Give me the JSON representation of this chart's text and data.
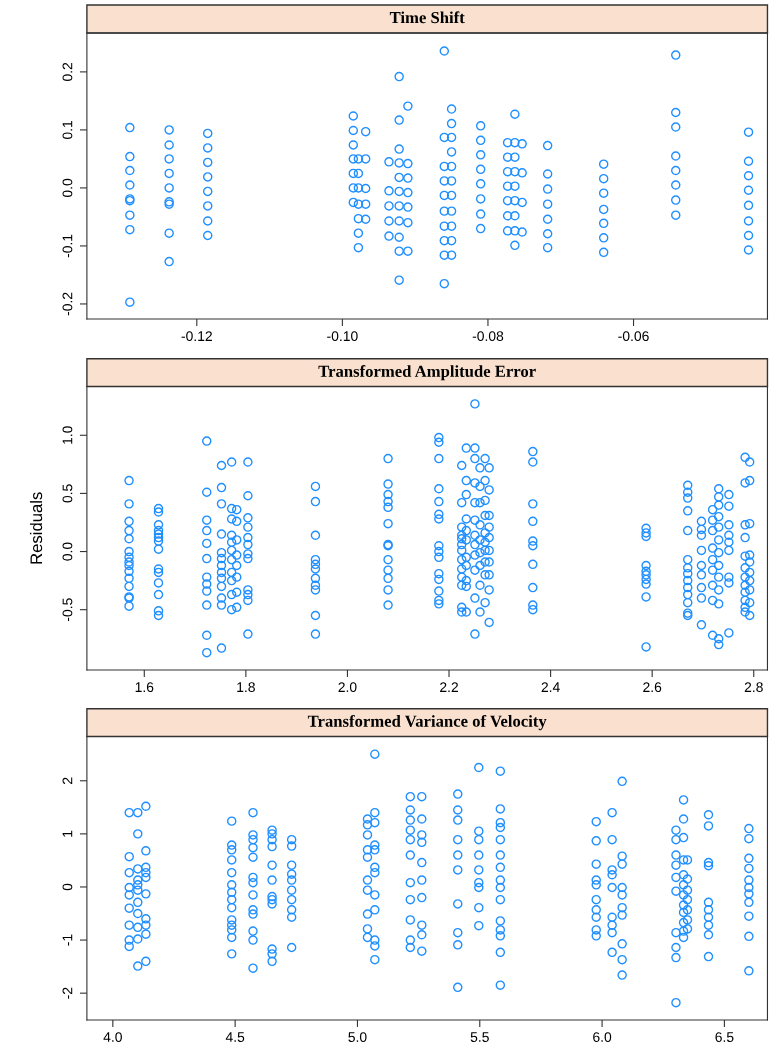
{
  "chart_data": [
    {
      "type": "scatter",
      "title": "Time Shift",
      "marker": "circle",
      "color": "#1f8fff",
      "grid": false,
      "xlim": [
        -0.1351,
        -0.0416
      ],
      "ylim": [
        -0.226,
        0.267
      ],
      "xticks": [
        {
          "value": -0.12,
          "label": "-0.12"
        },
        {
          "value": -0.1,
          "label": "-0.10"
        },
        {
          "value": -0.08,
          "label": "-0.08"
        },
        {
          "value": -0.06,
          "label": "-0.06"
        }
      ],
      "yticks": [
        {
          "value": -0.2,
          "label": "-0.2"
        },
        {
          "value": -0.1,
          "label": "-0.1"
        },
        {
          "value": 0,
          "label": "0.0"
        },
        {
          "value": 0.1,
          "label": "0.1"
        },
        {
          "value": 0.2,
          "label": "0.2"
        }
      ],
      "series": [
        {
          "x": [
            -0.1292,
            -0.1292,
            -0.1292,
            -0.1292,
            -0.1292,
            -0.1292,
            -0.1292,
            -0.1292,
            -0.1292
          ],
          "values": [
            0.104,
            0.054,
            0.03,
            0.005,
            -0.019,
            -0.022,
            -0.047,
            -0.072,
            -0.197
          ]
        },
        {
          "x": [
            -0.1238,
            -0.1238,
            -0.1238,
            -0.1238,
            -0.1238,
            -0.1238,
            -0.1238,
            -0.1238,
            -0.1238
          ],
          "values": [
            0.1,
            0.074,
            0.05,
            0.025,
            0.0,
            -0.024,
            -0.028,
            -0.078,
            -0.127
          ]
        },
        {
          "x": [
            -0.1185,
            -0.1185,
            -0.1185,
            -0.1185,
            -0.1185,
            -0.1185,
            -0.1185,
            -0.1185
          ],
          "values": [
            0.094,
            0.069,
            0.044,
            0.019,
            -0.006,
            -0.031,
            -0.057,
            -0.082
          ]
        },
        {
          "x": [
            -0.0985,
            -0.0985,
            -0.0985,
            -0.0985,
            -0.0985,
            -0.0985,
            -0.0985
          ],
          "values": [
            0.124,
            0.099,
            0.074,
            0.05,
            0.025,
            0,
            -0.025
          ]
        },
        {
          "x": [
            -0.0978,
            -0.0978,
            -0.0978,
            -0.0978,
            -0.0978,
            -0.0978,
            -0.0978
          ],
          "values": [
            0.05,
            0.025,
            0,
            -0.028,
            -0.053,
            -0.078,
            -0.103
          ]
        },
        {
          "x": [
            -0.0968,
            -0.0968,
            -0.0968,
            -0.0968,
            -0.0968
          ],
          "values": [
            0.097,
            0.05,
            -0.001,
            -0.028,
            -0.054
          ]
        },
        {
          "x": [
            -0.0936,
            -0.0936,
            -0.0936,
            -0.0936,
            -0.0936
          ],
          "values": [
            0.045,
            -0.005,
            -0.031,
            -0.057,
            -0.083
          ]
        },
        {
          "x": [
            -0.0922,
            -0.0922,
            -0.0922,
            -0.0922,
            -0.0922,
            -0.0922,
            -0.0922,
            -0.0922,
            -0.0922,
            -0.0922,
            -0.0922
          ],
          "values": [
            0.192,
            0.117,
            0.067,
            0.043,
            0.018,
            -0.006,
            -0.031,
            -0.057,
            -0.085,
            -0.109,
            -0.159
          ]
        },
        {
          "x": [
            -0.091,
            -0.091,
            -0.091,
            -0.091,
            -0.091,
            -0.091,
            -0.091
          ],
          "values": [
            0.141,
            0.042,
            0.017,
            -0.008,
            -0.033,
            -0.06,
            -0.109
          ]
        },
        {
          "x": [
            -0.086,
            -0.086,
            -0.086,
            -0.086,
            -0.086,
            -0.086,
            -0.086,
            -0.086,
            -0.086,
            -0.086
          ],
          "values": [
            0.236,
            0.087,
            0.037,
            0.012,
            -0.013,
            -0.04,
            -0.066,
            -0.091,
            -0.116,
            -0.165
          ]
        },
        {
          "x": [
            -0.085,
            -0.085,
            -0.085,
            -0.085,
            -0.085,
            -0.085,
            -0.085,
            -0.085,
            -0.085,
            -0.085,
            -0.085
          ],
          "values": [
            0.136,
            0.111,
            0.087,
            0.062,
            0.037,
            0.012,
            -0.013,
            -0.04,
            -0.066,
            -0.091,
            -0.116
          ]
        },
        {
          "x": [
            -0.081,
            -0.081,
            -0.081,
            -0.081,
            -0.081,
            -0.081,
            -0.081,
            -0.081
          ],
          "values": [
            0.107,
            0.082,
            0.057,
            0.032,
            0.007,
            -0.019,
            -0.045,
            -0.07
          ]
        },
        {
          "x": [
            -0.0773,
            -0.0773,
            -0.0773,
            -0.0773,
            -0.0773,
            -0.0773,
            -0.0773
          ],
          "values": [
            0.078,
            0.053,
            0.028,
            0.003,
            -0.022,
            -0.048,
            -0.074
          ]
        },
        {
          "x": [
            -0.0763,
            -0.0763,
            -0.0763,
            -0.0763,
            -0.0763,
            -0.0763,
            -0.0763,
            -0.0763,
            -0.0763
          ],
          "values": [
            0.127,
            0.078,
            0.053,
            0.028,
            0.003,
            -0.022,
            -0.048,
            -0.074,
            -0.099
          ]
        },
        {
          "x": [
            -0.0753,
            -0.0753,
            -0.0753,
            -0.0753
          ],
          "values": [
            0.076,
            0.026,
            -0.025,
            -0.076
          ]
        },
        {
          "x": [
            -0.0718,
            -0.0718,
            -0.0718,
            -0.0718,
            -0.0718,
            -0.0718,
            -0.0718
          ],
          "values": [
            0.073,
            0.024,
            -0.002,
            -0.028,
            -0.054,
            -0.079,
            -0.103
          ]
        },
        {
          "x": [
            -0.0641,
            -0.0641,
            -0.0641,
            -0.0641,
            -0.0641,
            -0.0641,
            -0.0641
          ],
          "values": [
            0.041,
            0.016,
            -0.009,
            -0.037,
            -0.061,
            -0.086,
            -0.111
          ]
        },
        {
          "x": [
            -0.0542,
            -0.0542,
            -0.0542,
            -0.0542,
            -0.0542,
            -0.0542,
            -0.0542,
            -0.0542
          ],
          "values": [
            0.229,
            0.13,
            0.105,
            0.055,
            0.03,
            0.005,
            -0.021,
            -0.047
          ]
        },
        {
          "x": [
            -0.0442,
            -0.0442,
            -0.0442,
            -0.0442,
            -0.0442,
            -0.0442,
            -0.0442,
            -0.0442
          ],
          "values": [
            0.096,
            0.046,
            0.021,
            -0.004,
            -0.03,
            -0.057,
            -0.082,
            -0.107
          ]
        }
      ]
    },
    {
      "type": "scatter",
      "title": "Transformed Amplitude Error",
      "ylabel": "Residuals",
      "marker": "circle",
      "color": "#1f8fff",
      "grid": false,
      "xlim": [
        1.487,
        2.827
      ],
      "ylim": [
        -1.019,
        1.419
      ],
      "xticks": [
        {
          "value": 1.6,
          "label": "1.6"
        },
        {
          "value": 1.8,
          "label": "1.8"
        },
        {
          "value": 2.0,
          "label": "2.0"
        },
        {
          "value": 2.2,
          "label": "2.2"
        },
        {
          "value": 2.4,
          "label": "2.4"
        },
        {
          "value": 2.6,
          "label": "2.6"
        },
        {
          "value": 2.8,
          "label": "2.8"
        }
      ],
      "yticks": [
        {
          "value": -0.5,
          "label": "-0.5"
        },
        {
          "value": 0,
          "label": "0.0"
        },
        {
          "value": 0.5,
          "label": "0.5"
        },
        {
          "value": 1.0,
          "label": "1.0"
        }
      ],
      "series": [
        {
          "x": [
            1.57,
            1.57,
            1.57,
            1.57,
            1.57,
            1.57,
            1.57,
            1.57,
            1.57,
            1.57,
            1.57,
            1.57,
            1.57,
            1.57,
            1.57
          ],
          "values": [
            0.61,
            0.41,
            0.26,
            0.18,
            0.11,
            0.0,
            -0.05,
            -0.09,
            -0.12,
            -0.17,
            -0.23,
            -0.3,
            -0.39,
            -0.4,
            -0.47
          ]
        },
        {
          "x": [
            1.628,
            1.628,
            1.628,
            1.628,
            1.628,
            1.628,
            1.628,
            1.628,
            1.628,
            1.628,
            1.628,
            1.628,
            1.628,
            1.628
          ],
          "values": [
            0.37,
            0.34,
            0.23,
            0.18,
            0.15,
            0.12,
            0.09,
            0.02,
            -0.15,
            -0.18,
            -0.27,
            -0.37,
            -0.51,
            -0.55
          ]
        },
        {
          "x": [
            1.723,
            1.723,
            1.723,
            1.723,
            1.723,
            1.723,
            1.723,
            1.723,
            1.723,
            1.723,
            1.723,
            1.723
          ],
          "values": [
            0.95,
            0.51,
            0.27,
            0.18,
            0.07,
            -0.06,
            -0.22,
            -0.28,
            -0.34,
            -0.46,
            -0.72,
            -0.87
          ]
        },
        {
          "x": [
            1.752,
            1.752,
            1.752,
            1.752,
            1.752,
            1.752,
            1.752,
            1.752,
            1.752,
            1.752,
            1.752,
            1.752,
            1.752
          ],
          "values": [
            0.74,
            0.55,
            0.41,
            0.15,
            -0.01,
            -0.06,
            -0.12,
            -0.18,
            -0.23,
            -0.3,
            -0.4,
            -0.46,
            -0.83
          ]
        },
        {
          "x": [
            1.772,
            1.772,
            1.772,
            1.772,
            1.772,
            1.772,
            1.772,
            1.772,
            1.772,
            1.772,
            1.772
          ],
          "values": [
            0.77,
            0.37,
            0.28,
            0.14,
            0.08,
            0.01,
            -0.07,
            -0.18,
            -0.25,
            -0.37,
            -0.5
          ]
        },
        {
          "x": [
            1.782,
            1.782,
            1.782,
            1.782,
            1.782,
            1.782,
            1.782,
            1.782
          ],
          "values": [
            0.36,
            0.26,
            0.1,
            -0.03,
            -0.12,
            -0.22,
            -0.35,
            -0.48
          ]
        },
        {
          "x": [
            1.804,
            1.804,
            1.804,
            1.804,
            1.804,
            1.804,
            1.804,
            1.804,
            1.804,
            1.804,
            1.804,
            1.804
          ],
          "values": [
            0.77,
            0.48,
            0.29,
            0.21,
            0.12,
            0.06,
            -0.02,
            -0.06,
            -0.33,
            -0.37,
            -0.42,
            -0.71
          ]
        },
        {
          "x": [
            1.937,
            1.937,
            1.937,
            1.937,
            1.937,
            1.937,
            1.937,
            1.937,
            1.937,
            1.937,
            1.937
          ],
          "values": [
            0.56,
            0.43,
            0.14,
            -0.07,
            -0.11,
            -0.15,
            -0.23,
            -0.29,
            -0.33,
            -0.55,
            -0.71
          ]
        },
        {
          "x": [
            2.08,
            2.08,
            2.08,
            2.08,
            2.08,
            2.08,
            2.08,
            2.08,
            2.08,
            2.08,
            2.08,
            2.08,
            2.08
          ],
          "values": [
            0.8,
            0.58,
            0.49,
            0.43,
            0.38,
            0.24,
            0.06,
            0.05,
            -0.07,
            -0.16,
            -0.23,
            -0.33,
            -0.46
          ]
        },
        {
          "x": [
            2.18,
            2.18,
            2.18,
            2.18,
            2.18,
            2.18,
            2.18,
            2.18,
            2.18,
            2.18,
            2.18,
            2.18,
            2.18,
            2.18,
            2.18
          ],
          "values": [
            0.98,
            0.94,
            0.8,
            0.54,
            0.43,
            0.32,
            0.28,
            0.05,
            0.0,
            -0.05,
            -0.19,
            -0.24,
            -0.34,
            -0.42,
            -0.45
          ]
        },
        {
          "x": [
            2.225,
            2.225,
            2.225,
            2.225,
            2.225,
            2.225,
            2.225,
            2.225,
            2.225,
            2.225,
            2.225,
            2.225,
            2.225
          ],
          "values": [
            0.74,
            0.42,
            0.21,
            0.14,
            0.11,
            0.06,
            0.01,
            -0.07,
            -0.15,
            -0.22,
            -0.29,
            -0.48,
            -0.52
          ]
        },
        {
          "x": [
            2.234,
            2.234,
            2.234,
            2.234,
            2.234,
            2.234,
            2.234,
            2.234,
            2.234,
            2.234,
            2.234
          ],
          "values": [
            0.89,
            0.61,
            0.49,
            0.28,
            0.18,
            0.1,
            -0.05,
            -0.12,
            -0.25,
            -0.3,
            -0.52
          ]
        },
        {
          "x": [
            2.251,
            2.251,
            2.251,
            2.251,
            2.251,
            2.251,
            2.251,
            2.251,
            2.251,
            2.251,
            2.251,
            2.251
          ],
          "values": [
            1.27,
            0.89,
            0.8,
            0.59,
            0.42,
            0.27,
            0.14,
            0.06,
            -0.03,
            -0.16,
            -0.4,
            -0.71
          ]
        },
        {
          "x": [
            2.261,
            2.261,
            2.261,
            2.261,
            2.261,
            2.261,
            2.261,
            2.261,
            2.261
          ],
          "values": [
            0.72,
            0.56,
            0.42,
            0.23,
            0.1,
            -0.01,
            -0.12,
            -0.29,
            -0.52
          ]
        },
        {
          "x": [
            2.271,
            2.271,
            2.271,
            2.271,
            2.271,
            2.271,
            2.271,
            2.271,
            2.271,
            2.271
          ],
          "values": [
            0.8,
            0.61,
            0.44,
            0.31,
            0.16,
            0.08,
            0.01,
            -0.09,
            -0.2,
            -0.44
          ]
        },
        {
          "x": [
            2.279,
            2.279,
            2.279,
            2.279,
            2.279,
            2.279,
            2.279,
            2.279,
            2.279,
            2.279
          ],
          "values": [
            0.72,
            0.53,
            0.31,
            0.21,
            0.12,
            0.01,
            -0.09,
            -0.2,
            -0.33,
            -0.61
          ]
        },
        {
          "x": [
            2.365,
            2.365,
            2.365,
            2.365,
            2.365,
            2.365,
            2.365,
            2.365,
            2.365,
            2.365
          ],
          "values": [
            0.86,
            0.77,
            0.41,
            0.26,
            0.09,
            0.05,
            -0.11,
            -0.31,
            -0.46,
            -0.5
          ]
        },
        {
          "x": [
            2.588,
            2.588,
            2.588,
            2.588,
            2.588,
            2.588,
            2.588,
            2.588,
            2.588,
            2.588
          ],
          "values": [
            0.2,
            0.16,
            0.13,
            -0.12,
            -0.17,
            -0.2,
            -0.24,
            -0.28,
            -0.39,
            -0.82
          ]
        },
        {
          "x": [
            2.67,
            2.67,
            2.67,
            2.67,
            2.67,
            2.67,
            2.67,
            2.67,
            2.67,
            2.67,
            2.67,
            2.67,
            2.67,
            2.67
          ],
          "values": [
            0.57,
            0.51,
            0.46,
            0.35,
            0.18,
            -0.07,
            -0.14,
            -0.19,
            -0.25,
            -0.31,
            -0.37,
            -0.44,
            -0.53,
            -0.55
          ]
        },
        {
          "x": [
            2.697,
            2.697,
            2.697,
            2.697,
            2.697,
            2.697,
            2.697,
            2.697,
            2.697
          ],
          "values": [
            0.26,
            0.19,
            0.14,
            0.01,
            -0.12,
            -0.2,
            -0.31,
            -0.4,
            -0.63
          ]
        },
        {
          "x": [
            2.719,
            2.719,
            2.719,
            2.719,
            2.719,
            2.719,
            2.719,
            2.719,
            2.719
          ],
          "values": [
            0.36,
            0.27,
            0.18,
            0.03,
            -0.07,
            -0.16,
            -0.29,
            -0.42,
            -0.72
          ]
        },
        {
          "x": [
            2.731,
            2.731,
            2.731,
            2.731,
            2.731,
            2.731,
            2.731,
            2.731,
            2.731,
            2.731,
            2.731,
            2.731,
            2.731
          ],
          "values": [
            0.54,
            0.47,
            0.4,
            0.3,
            0.21,
            0.1,
            -0.01,
            -0.12,
            -0.22,
            -0.33,
            -0.45,
            -0.75,
            -0.8
          ]
        },
        {
          "x": [
            2.751,
            2.751,
            2.751,
            2.751,
            2.751,
            2.751,
            2.751,
            2.751,
            2.751
          ],
          "values": [
            0.49,
            0.39,
            0.23,
            0.14,
            0.08,
            0.01,
            -0.22,
            -0.27,
            -0.7
          ]
        },
        {
          "x": [
            2.783,
            2.783,
            2.783,
            2.783,
            2.783,
            2.783,
            2.783,
            2.783,
            2.783,
            2.783,
            2.783,
            2.783
          ],
          "values": [
            0.81,
            0.59,
            0.23,
            0.12,
            -0.04,
            -0.14,
            -0.22,
            -0.29,
            -0.35,
            -0.42,
            -0.48,
            -0.52
          ]
        },
        {
          "x": [
            2.792,
            2.792,
            2.792,
            2.792,
            2.792,
            2.792,
            2.792,
            2.792,
            2.792,
            2.792
          ],
          "values": [
            0.77,
            0.61,
            0.24,
            -0.03,
            -0.09,
            -0.18,
            -0.25,
            -0.33,
            -0.44,
            -0.55
          ]
        }
      ]
    },
    {
      "type": "scatter",
      "title": "Transformed Variance of Velocity",
      "marker": "circle",
      "color": "#1f8fff",
      "grid": false,
      "xlim": [
        3.894,
        6.676
      ],
      "ylim": [
        -2.505,
        2.834
      ],
      "xticks": [
        {
          "value": 4.0,
          "label": "4.0"
        },
        {
          "value": 4.5,
          "label": "4.5"
        },
        {
          "value": 5.0,
          "label": "5.0"
        },
        {
          "value": 5.5,
          "label": "5.5"
        },
        {
          "value": 6.0,
          "label": "6.0"
        },
        {
          "value": 6.5,
          "label": "6.5"
        }
      ],
      "yticks": [
        -2,
        -1,
        0,
        1,
        2
      ],
      "series": [
        {
          "x": [
            4.067,
            4.067,
            4.067,
            4.067,
            4.067,
            4.067,
            4.067,
            4.067,
            4.067
          ],
          "values": [
            1.4,
            0.57,
            0.27,
            -0.01,
            -0.15,
            -0.4,
            -0.72,
            -1.0,
            -1.12
          ]
        },
        {
          "x": [
            4.102,
            4.102,
            4.102,
            4.102,
            4.102,
            4.102,
            4.102,
            4.102,
            4.102,
            4.102,
            4.102
          ],
          "values": [
            1.4,
            1.0,
            0.34,
            0.13,
            0.04,
            -0.06,
            -0.29,
            -0.5,
            -0.76,
            -0.98,
            -1.49
          ]
        },
        {
          "x": [
            4.135,
            4.135,
            4.135,
            4.135,
            4.135,
            4.135,
            4.135,
            4.135,
            4.135,
            4.135
          ],
          "values": [
            1.52,
            0.68,
            0.37,
            0.27,
            0.18,
            -0.13,
            -0.6,
            -0.72,
            -0.89,
            -1.4
          ]
        },
        {
          "x": [
            4.486,
            4.486,
            4.486,
            4.486,
            4.486,
            4.486,
            4.486,
            4.486,
            4.486,
            4.486,
            4.486,
            4.486,
            4.486,
            4.486
          ],
          "values": [
            1.24,
            0.79,
            0.7,
            0.51,
            0.27,
            0.04,
            -0.1,
            -0.24,
            -0.39,
            -0.62,
            -0.72,
            -0.81,
            -0.95,
            -1.26
          ]
        },
        {
          "x": [
            4.573,
            4.573,
            4.573,
            4.573,
            4.573,
            4.573,
            4.573,
            4.573,
            4.573,
            4.573,
            4.573,
            4.573,
            4.573
          ],
          "values": [
            1.4,
            0.98,
            0.89,
            0.74,
            0.56,
            0.18,
            0.08,
            -0.15,
            -0.43,
            -0.51,
            -0.83,
            -1.0,
            -1.53
          ]
        },
        {
          "x": [
            4.651,
            4.651,
            4.651,
            4.651,
            4.651,
            4.651,
            4.651,
            4.651,
            4.651,
            4.651,
            4.651,
            4.651
          ],
          "values": [
            1.07,
            1.0,
            0.89,
            0.76,
            0.41,
            0.13,
            -0.18,
            -0.24,
            -0.32,
            -1.17,
            -1.26,
            -1.4
          ]
        },
        {
          "x": [
            4.731,
            4.731,
            4.731,
            4.731,
            4.731,
            4.731,
            4.731,
            4.731,
            4.731,
            4.731
          ],
          "values": [
            0.89,
            0.77,
            0.41,
            0.24,
            0.13,
            -0.06,
            -0.24,
            -0.43,
            -0.57,
            -1.14
          ]
        },
        {
          "x": [
            5.041,
            5.041,
            5.041,
            5.041,
            5.041,
            5.041,
            5.041,
            5.041,
            5.041,
            5.041
          ],
          "values": [
            1.28,
            1.17,
            0.98,
            0.7,
            0.56,
            0.13,
            -0.06,
            -0.51,
            -0.79,
            -0.95
          ]
        },
        {
          "x": [
            5.071,
            5.071,
            5.071,
            5.071,
            5.071,
            5.071,
            5.071,
            5.071,
            5.071,
            5.071,
            5.071,
            5.071
          ],
          "values": [
            2.5,
            1.4,
            1.21,
            0.79,
            0.7,
            0.37,
            0.27,
            -0.15,
            -0.43,
            -1.0,
            -1.11,
            -1.37
          ]
        },
        {
          "x": [
            5.216,
            5.216,
            5.216,
            5.216,
            5.216,
            5.216,
            5.216,
            5.216,
            5.216,
            5.216,
            5.216
          ],
          "values": [
            1.7,
            1.45,
            1.26,
            1.07,
            0.89,
            0.6,
            0.08,
            -0.24,
            -0.62,
            -1.0,
            -1.14
          ]
        },
        {
          "x": [
            5.263,
            5.263,
            5.263,
            5.263,
            5.263,
            5.263,
            5.263,
            5.263,
            5.263,
            5.263
          ],
          "values": [
            1.7,
            1.28,
            0.98,
            0.84,
            0.46,
            0.13,
            -0.2,
            -0.72,
            -0.9,
            -1.21
          ]
        },
        {
          "x": [
            5.41,
            5.41,
            5.41,
            5.41,
            5.41,
            5.41,
            5.41,
            5.41,
            5.41,
            5.41
          ],
          "values": [
            1.75,
            1.45,
            1.26,
            0.89,
            0.6,
            0.32,
            -0.32,
            -0.86,
            -1.09,
            -1.89
          ]
        },
        {
          "x": [
            5.496,
            5.496,
            5.496,
            5.496,
            5.496,
            5.496,
            5.496,
            5.496,
            5.496
          ],
          "values": [
            2.25,
            1.05,
            0.89,
            0.6,
            0.32,
            0.08,
            -0.01,
            -0.39,
            -0.73
          ]
        },
        {
          "x": [
            5.584,
            5.584,
            5.584,
            5.584,
            5.584,
            5.584,
            5.584,
            5.584,
            5.584,
            5.584,
            5.584,
            5.584,
            5.584,
            5.584,
            5.584
          ],
          "values": [
            2.18,
            1.47,
            1.21,
            1.12,
            0.89,
            0.6,
            0.37,
            0.13,
            -0.01,
            -0.24,
            -0.64,
            -0.81,
            -0.92,
            -1.23,
            -1.85
          ]
        },
        {
          "x": [
            5.976,
            5.976,
            5.976,
            5.976,
            5.976,
            5.976,
            5.976,
            5.976,
            5.976,
            5.976
          ],
          "values": [
            1.23,
            0.87,
            0.43,
            0.13,
            0.04,
            -0.24,
            -0.43,
            -0.57,
            -0.81,
            -0.92
          ]
        },
        {
          "x": [
            6.041,
            6.041,
            6.041,
            6.041,
            6.041,
            6.041,
            6.041,
            6.041,
            6.041
          ],
          "values": [
            1.4,
            0.89,
            0.32,
            0.23,
            -0.01,
            -0.57,
            -0.72,
            -0.86,
            -1.23
          ]
        },
        {
          "x": [
            6.082,
            6.082,
            6.082,
            6.082,
            6.082,
            6.082,
            6.082,
            6.082,
            6.082,
            6.082
          ],
          "values": [
            1.99,
            0.58,
            0.43,
            -0.01,
            -0.15,
            -0.39,
            -0.53,
            -1.07,
            -1.37,
            -1.66
          ]
        },
        {
          "x": [
            6.302,
            6.302,
            6.302,
            6.302,
            6.302,
            6.302,
            6.302,
            6.302,
            6.302,
            6.302
          ],
          "values": [
            1.07,
            0.89,
            0.6,
            0.41,
            0.18,
            -0.08,
            -0.86,
            -1.14,
            -1.33,
            -2.18
          ]
        },
        {
          "x": [
            6.333,
            6.333,
            6.333,
            6.333,
            6.333,
            6.333,
            6.333,
            6.333,
            6.333,
            6.333,
            6.333,
            6.333
          ],
          "values": [
            1.64,
            1.28,
            0.93,
            0.51,
            0.23,
            0.04,
            -0.15,
            -0.34,
            -0.48,
            -0.67,
            -0.83,
            -0.95
          ]
        },
        {
          "x": [
            6.349,
            6.349,
            6.349,
            6.349,
            6.349,
            6.349,
            6.349
          ],
          "values": [
            0.51,
            0.15,
            -0.06,
            -0.24,
            -0.43,
            -0.62,
            -0.79
          ]
        },
        {
          "x": [
            6.435,
            6.435,
            6.435,
            6.435,
            6.435,
            6.435,
            6.435,
            6.435,
            6.435,
            6.435
          ],
          "values": [
            1.36,
            1.15,
            0.46,
            0.4,
            -0.29,
            -0.43,
            -0.57,
            -0.72,
            -0.9,
            -1.31
          ]
        },
        {
          "x": [
            6.6,
            6.6,
            6.6,
            6.6,
            6.6,
            6.6,
            6.6,
            6.6,
            6.6,
            6.6,
            6.6
          ],
          "values": [
            1.1,
            0.91,
            0.54,
            0.35,
            0.13,
            -0.01,
            -0.13,
            -0.29,
            -0.55,
            -0.93,
            -1.58
          ]
        }
      ]
    }
  ]
}
